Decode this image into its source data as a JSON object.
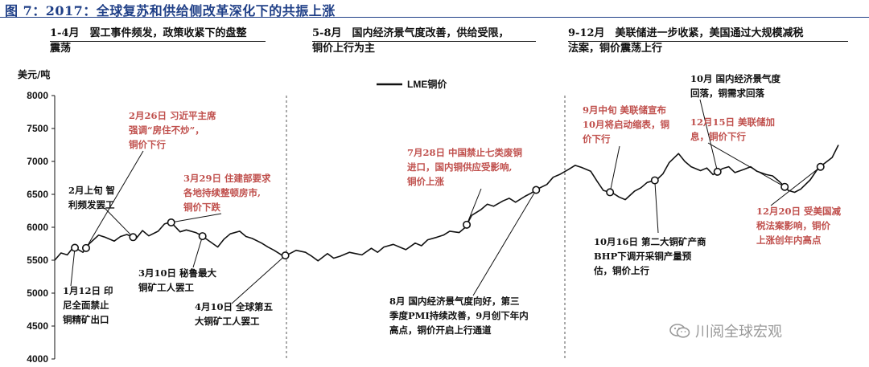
{
  "figure_title": "图 7：2017：全球复苏和供给侧改革深化下的共振上涨",
  "periods": [
    {
      "line1": "1-4月　罢工事件频发，政策收紧下的盘整",
      "line2": "震荡"
    },
    {
      "line1": "5-8月　国内经济景气度改善，供给受限，",
      "line2": "铜价上行为主"
    },
    {
      "line1": "9-12月　美联储进一步收紧，美国通过大规模减税",
      "line2": "法案，铜价震荡上行"
    }
  ],
  "annotations": [
    {
      "lines": [
        "2月26日  习近平主席",
        "强调“房住不炒”，",
        "铜价下行"
      ],
      "color": "red"
    },
    {
      "lines": [
        "2月上旬  智",
        "利频发罢工"
      ],
      "color": "black"
    },
    {
      "lines": [
        "3月29日 住建部要求",
        "各地持续整顿房市,",
        "铜价下跌"
      ],
      "color": "red"
    },
    {
      "lines": [
        "3月10日  秘鲁最大",
        "铜矿工人罢工"
      ],
      "color": "black"
    },
    {
      "lines": [
        "1月12日  印",
        "尼全面禁止",
        "铜精矿出口"
      ],
      "color": "black"
    },
    {
      "lines": [
        "4月10日  全球第五",
        "大铜矿工人罢工"
      ],
      "color": "black"
    },
    {
      "lines": [
        "7月28日  中国禁止七类废铜",
        "进口，国内铜供应受影响,",
        "铜价上涨"
      ],
      "color": "red"
    },
    {
      "lines": [
        "8月  国内经济景气度向好，第三",
        "季度PMI持续改善，9月创下年内",
        "高点，铜价开启上行通道"
      ],
      "color": "black"
    },
    {
      "lines": [
        "9月中旬  美联储宣布",
        "10月将启动缩表，铜",
        "价下行"
      ],
      "color": "red"
    },
    {
      "lines": [
        "10月  国内经济景气度",
        "回落，铜需求回落"
      ],
      "color": "black"
    },
    {
      "lines": [
        "12月15日  美联储加",
        "息，铜价下行"
      ],
      "color": "red"
    },
    {
      "lines": [
        "10月16日  第二大铜矿产商",
        "BHP下调开采铜产量预",
        "估，铜价上行"
      ],
      "color": "black"
    },
    {
      "lines": [
        "12月20日  受美国减",
        "税法案影响，铜价",
        "上涨创年内高点"
      ],
      "color": "red"
    }
  ],
  "watermark": "川阅全球宏观",
  "colors": {
    "title": "#1f3f87",
    "red_annotation": "#c0504d",
    "line": "#111111"
  },
  "chart_data": {
    "type": "line",
    "title": "",
    "ylabel": "美元/吨",
    "ylim": [
      4000,
      8000
    ],
    "yticks": [
      4000,
      4500,
      5000,
      5500,
      6000,
      6500,
      7000,
      7500,
      8000
    ],
    "legend": "top-center",
    "series": [
      {
        "name": "LME铜价",
        "x": [
          0,
          2,
          4,
          6,
          9,
          11,
          14,
          16,
          19,
          21,
          23,
          26,
          28,
          30,
          33,
          35,
          37,
          40,
          42,
          45,
          47,
          49,
          52,
          54,
          56,
          59,
          61,
          63,
          66,
          68,
          70,
          73,
          75,
          77,
          80,
          82,
          84,
          87,
          89,
          91,
          94,
          96,
          98,
          101,
          103,
          105,
          108,
          110,
          112,
          115,
          117,
          119,
          122,
          124,
          126,
          129,
          131,
          133,
          136,
          138,
          140,
          143,
          145,
          147,
          150,
          152,
          154,
          157,
          159,
          161,
          164,
          166,
          168,
          171,
          173,
          175,
          178,
          180,
          182,
          185,
          187,
          189,
          192,
          194,
          196,
          199,
          201,
          203,
          206,
          208,
          210,
          213,
          215,
          217,
          220,
          222,
          224,
          227,
          229,
          231,
          234,
          236,
          238,
          241,
          243,
          245,
          248,
          250
        ],
        "values": [
          5500,
          5610,
          5580,
          5700,
          5620,
          5750,
          5880,
          5850,
          5790,
          5860,
          5890,
          5830,
          5950,
          5870,
          5940,
          6050,
          6080,
          5930,
          5960,
          5920,
          5870,
          5800,
          5700,
          5820,
          5900,
          5940,
          5860,
          5830,
          5760,
          5700,
          5650,
          5560,
          5600,
          5650,
          5620,
          5560,
          5490,
          5600,
          5530,
          5560,
          5620,
          5600,
          5580,
          5680,
          5620,
          5700,
          5740,
          5700,
          5660,
          5760,
          5720,
          5810,
          5850,
          5880,
          5940,
          5920,
          6000,
          6180,
          6270,
          6350,
          6320,
          6400,
          6440,
          6380,
          6470,
          6520,
          6580,
          6650,
          6760,
          6800,
          6880,
          6940,
          6910,
          6850,
          6700,
          6560,
          6520,
          6460,
          6420,
          6550,
          6600,
          6680,
          6720,
          6810,
          6980,
          7120,
          7000,
          6920,
          6860,
          6900,
          6800,
          6890,
          6920,
          6830,
          6880,
          6920,
          6850,
          6800,
          6780,
          6700,
          6560,
          6530,
          6580,
          6720,
          6860,
          6950,
          7060,
          7250
        ]
      }
    ]
  }
}
